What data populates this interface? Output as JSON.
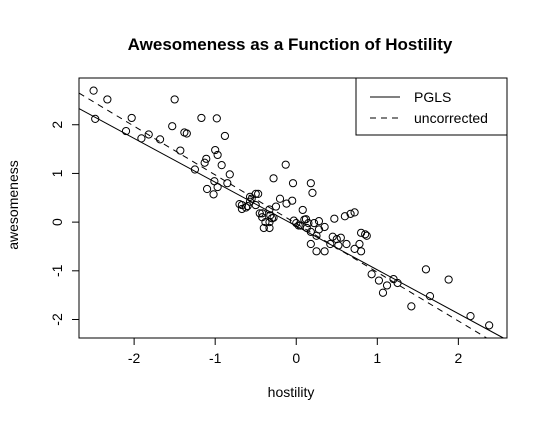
{
  "chart_data": {
    "type": "scatter",
    "title": "Awesomeness as a Function of Hostility",
    "xlabel": "hostility",
    "ylabel": "awesomeness",
    "xlim": [
      -2.68,
      2.6
    ],
    "ylim": [
      -2.38,
      2.96
    ],
    "xticks": [
      -2,
      -1,
      0,
      1,
      2
    ],
    "yticks": [
      -2,
      -1,
      0,
      1,
      2
    ],
    "xtick_labels": [
      "-2",
      "-1",
      "0",
      "1",
      "2"
    ],
    "ytick_labels": [
      "-2",
      "-1",
      "0",
      "1",
      "2"
    ],
    "grid": false,
    "legend_position": "top-right",
    "points": {
      "x": [
        -2.5,
        -2.33,
        -2.03,
        -1.91,
        -1.68,
        -1.53,
        -1.43,
        -1.35,
        -1.25,
        -1.11,
        -1.0,
        -0.92,
        -2.48,
        -2.1,
        -1.82,
        -1.5,
        -1.38,
        -1.17,
        -0.98,
        -0.97,
        -0.88,
        -0.82,
        -0.7,
        -0.57,
        -0.42,
        -1.13,
        -1.01,
        -0.97,
        -0.85,
        -0.67,
        -0.6,
        -0.55,
        -0.5,
        -0.45,
        -0.38,
        -0.33,
        -0.28,
        -1.1,
        -1.02,
        -0.67,
        -0.57,
        -0.47,
        -0.32,
        -0.2,
        -0.12,
        -0.04,
        0.08,
        0.18,
        0.2,
        0.28,
        -0.62,
        -0.5,
        -0.42,
        -0.33,
        -0.3,
        -0.25,
        -0.13,
        -0.03,
        0.03,
        0.1,
        0.13,
        0.18,
        0.22,
        0.28,
        0.47,
        0.6,
        0.67,
        0.72,
        0.8,
        0.85,
        -0.4,
        -0.33,
        -0.28,
        -0.05,
        0.0,
        0.12,
        0.18,
        0.25,
        0.35,
        0.42,
        0.5,
        0.62,
        0.05,
        0.15,
        0.25,
        0.35,
        0.45,
        0.52,
        0.55,
        0.72,
        0.78,
        0.8,
        0.87,
        0.93,
        1.02,
        1.12,
        1.07,
        1.2,
        1.25,
        1.42,
        1.6,
        1.65,
        1.88,
        2.15,
        2.38
      ],
      "y": [
        2.7,
        2.52,
        2.14,
        1.72,
        1.7,
        1.97,
        1.47,
        1.82,
        1.08,
        1.3,
        1.48,
        1.17,
        2.12,
        1.87,
        1.8,
        2.52,
        1.84,
        2.14,
        2.13,
        1.38,
        1.77,
        0.98,
        0.37,
        0.52,
        0.1,
        1.22,
        0.84,
        0.72,
        0.8,
        0.27,
        0.33,
        0.48,
        0.58,
        0.18,
        0.0,
        0.26,
        0.9,
        0.68,
        0.57,
        0.35,
        0.42,
        0.58,
        0.14,
        0.48,
        0.38,
        0.8,
        0.25,
        0.8,
        0.6,
        0.02,
        0.3,
        0.35,
        0.18,
        -0.12,
        0.08,
        0.32,
        1.18,
        0.03,
        -0.07,
        0.05,
        -0.12,
        -0.2,
        -0.02,
        -0.15,
        0.07,
        0.12,
        0.17,
        0.2,
        -0.22,
        -0.25,
        -0.12,
        0.0,
        0.09,
        0.44,
        -0.02,
        0.06,
        -0.45,
        -0.6,
        -0.6,
        -0.45,
        -0.35,
        -0.45,
        -0.07,
        -0.02,
        -0.28,
        -0.1,
        -0.3,
        -0.48,
        -0.32,
        -0.55,
        -0.45,
        -0.6,
        -0.28,
        -1.07,
        -1.2,
        -1.3,
        -1.45,
        -1.17,
        -1.25,
        -1.73,
        -0.97,
        -1.52,
        -1.18,
        -1.93,
        -2.12
      ]
    },
    "series": [
      {
        "name": "PGLS",
        "style": "solid",
        "intercept": -0.08,
        "slope": -0.9
      },
      {
        "name": "uncorrected",
        "style": "dashed",
        "intercept": -0.03,
        "slope": -1.0
      }
    ]
  }
}
